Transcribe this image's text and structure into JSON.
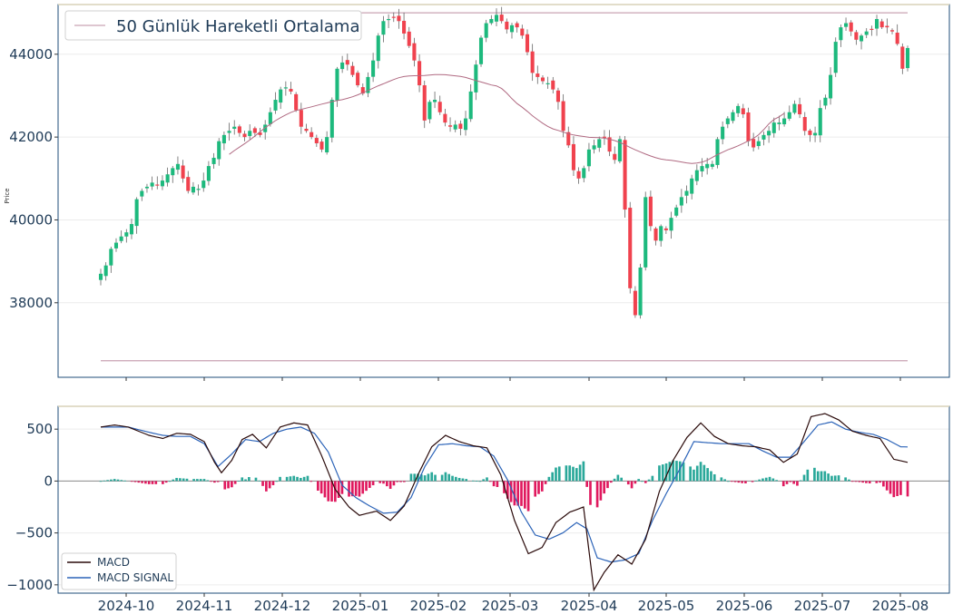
{
  "colors": {
    "up": "#1db97d",
    "down": "#f0424e",
    "ma": "#b06a82",
    "hline": "#c9a3b3",
    "macd": "#2a0a0a",
    "signal": "#2b63b8",
    "hist_pos": "#2aa89a",
    "hist_neg": "#e0195e",
    "axis": "#1f4e79",
    "grid": "#ececec"
  },
  "chart_data": [
    {
      "type": "candlestick",
      "ylabel": "Price",
      "ylim": [
        36200,
        45200
      ],
      "yticks": [
        38000,
        40000,
        42000,
        44000
      ],
      "xticks": [
        "2024-10",
        "2024-11",
        "2024-12",
        "2025-01",
        "2025-02",
        "2025-03",
        "2025-04",
        "2025-05",
        "2025-06",
        "2025-07",
        "2025-08"
      ],
      "legend": [
        "50 Günlük Hareketli Ortalama"
      ],
      "legend_position": "top-left",
      "hlines": [
        45000,
        36600
      ],
      "closes": [
        38700,
        38900,
        39300,
        39450,
        39600,
        39700,
        39900,
        40500,
        40700,
        40800,
        40900,
        40850,
        40950,
        41100,
        41250,
        41350,
        41000,
        40700,
        40800,
        40750,
        40950,
        41300,
        41500,
        41900,
        42050,
        42150,
        42250,
        42100,
        42000,
        42150,
        42100,
        42050,
        42300,
        42600,
        42900,
        43150,
        43200,
        43100,
        42650,
        42250,
        42150,
        42000,
        41850,
        41700,
        42000,
        42900,
        43650,
        43800,
        43750,
        43500,
        43250,
        43050,
        43450,
        43850,
        44450,
        44800,
        44850,
        44900,
        44800,
        44500,
        44200,
        43850,
        43250,
        42400,
        42850,
        42900,
        42600,
        42350,
        42250,
        42300,
        42200,
        42450,
        43100,
        43750,
        44400,
        44750,
        44850,
        44950,
        44800,
        44600,
        44700,
        44650,
        44450,
        44050,
        43550,
        43450,
        43350,
        43300,
        43150,
        42850,
        42150,
        41800,
        41200,
        41000,
        41250,
        41700,
        41800,
        41950,
        42000,
        41650,
        41450,
        41950,
        40250,
        38350,
        37700,
        38850,
        40550,
        39850,
        39500,
        39850,
        39750,
        40050,
        40300,
        40550,
        40700,
        41000,
        41200,
        41300,
        41350,
        41350,
        41950,
        42250,
        42450,
        42600,
        42750,
        42550,
        41900,
        41750,
        41900,
        42050,
        42150,
        42350,
        42350,
        42450,
        42600,
        42800,
        42550,
        42150,
        42050,
        42100,
        42700,
        42950,
        43500,
        44300,
        44650,
        44750,
        44550,
        44350,
        44450,
        44550,
        44600,
        44850,
        44650,
        44650,
        44550,
        44250,
        43650,
        44150
      ]
    },
    {
      "type": "macd",
      "ylim": [
        -1080,
        720
      ],
      "yticks": [
        500,
        0,
        -500,
        -1000
      ],
      "legend": [
        "MACD",
        "MACD SIGNAL"
      ],
      "legend_position": "bottom-left",
      "macd_anchors": [
        [
          0,
          520
        ],
        [
          4,
          540
        ],
        [
          8,
          520
        ],
        [
          14,
          440
        ],
        [
          18,
          410
        ],
        [
          22,
          460
        ],
        [
          26,
          450
        ],
        [
          30,
          380
        ],
        [
          33,
          180
        ],
        [
          35,
          80
        ],
        [
          38,
          200
        ],
        [
          41,
          400
        ],
        [
          44,
          450
        ],
        [
          48,
          320
        ],
        [
          52,
          520
        ],
        [
          56,
          560
        ],
        [
          60,
          540
        ],
        [
          64,
          250
        ],
        [
          68,
          -80
        ],
        [
          72,
          -250
        ],
        [
          75,
          -330
        ],
        [
          80,
          -290
        ],
        [
          84,
          -380
        ],
        [
          88,
          -240
        ],
        [
          92,
          60
        ],
        [
          96,
          330
        ],
        [
          100,
          440
        ],
        [
          104,
          380
        ],
        [
          108,
          340
        ],
        [
          112,
          320
        ],
        [
          116,
          60
        ],
        [
          120,
          -380
        ],
        [
          124,
          -700
        ],
        [
          128,
          -640
        ],
        [
          132,
          -400
        ],
        [
          136,
          -300
        ],
        [
          140,
          -250
        ],
        [
          143,
          -1050
        ],
        [
          146,
          -880
        ],
        [
          150,
          -710
        ],
        [
          154,
          -800
        ],
        [
          158,
          -560
        ],
        [
          162,
          -100
        ],
        [
          166,
          200
        ],
        [
          170,
          420
        ],
        [
          174,
          560
        ],
        [
          178,
          430
        ],
        [
          182,
          360
        ],
        [
          186,
          340
        ],
        [
          190,
          330
        ],
        [
          194,
          300
        ],
        [
          198,
          180
        ],
        [
          202,
          260
        ],
        [
          206,
          620
        ],
        [
          210,
          650
        ],
        [
          214,
          590
        ],
        [
          218,
          480
        ],
        [
          222,
          440
        ],
        [
          226,
          410
        ],
        [
          230,
          210
        ],
        [
          234,
          180
        ]
      ],
      "signal_anchors": [
        [
          0,
          520
        ],
        [
          8,
          520
        ],
        [
          14,
          470
        ],
        [
          18,
          440
        ],
        [
          22,
          430
        ],
        [
          26,
          430
        ],
        [
          30,
          360
        ],
        [
          34,
          140
        ],
        [
          38,
          260
        ],
        [
          42,
          400
        ],
        [
          46,
          380
        ],
        [
          50,
          460
        ],
        [
          54,
          500
        ],
        [
          58,
          520
        ],
        [
          62,
          460
        ],
        [
          66,
          280
        ],
        [
          70,
          -40
        ],
        [
          74,
          -160
        ],
        [
          78,
          -240
        ],
        [
          82,
          -310
        ],
        [
          86,
          -300
        ],
        [
          90,
          -160
        ],
        [
          94,
          140
        ],
        [
          98,
          350
        ],
        [
          102,
          360
        ],
        [
          106,
          340
        ],
        [
          110,
          330
        ],
        [
          114,
          240
        ],
        [
          118,
          10
        ],
        [
          122,
          -300
        ],
        [
          126,
          -520
        ],
        [
          130,
          -560
        ],
        [
          134,
          -500
        ],
        [
          138,
          -400
        ],
        [
          141,
          -460
        ],
        [
          144,
          -740
        ],
        [
          148,
          -780
        ],
        [
          152,
          -760
        ],
        [
          156,
          -700
        ],
        [
          160,
          -380
        ],
        [
          164,
          -120
        ],
        [
          168,
          120
        ],
        [
          172,
          380
        ],
        [
          176,
          370
        ],
        [
          180,
          360
        ],
        [
          184,
          360
        ],
        [
          188,
          360
        ],
        [
          192,
          290
        ],
        [
          196,
          230
        ],
        [
          200,
          230
        ],
        [
          204,
          380
        ],
        [
          208,
          540
        ],
        [
          212,
          570
        ],
        [
          216,
          500
        ],
        [
          220,
          470
        ],
        [
          224,
          450
        ],
        [
          228,
          400
        ],
        [
          232,
          330
        ]
      ]
    }
  ]
}
